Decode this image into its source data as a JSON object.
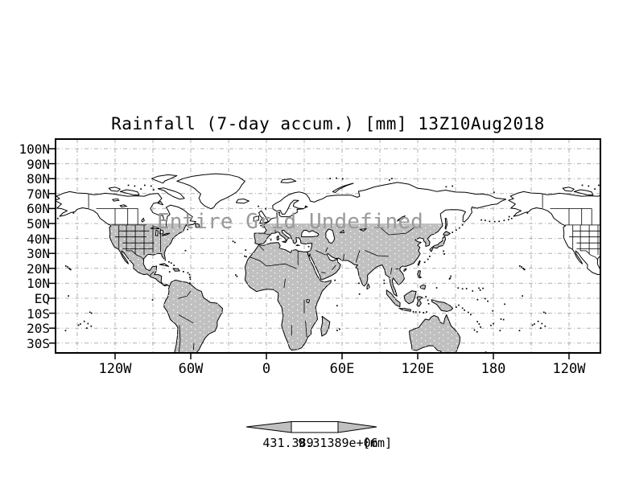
{
  "header": {
    "title": "Rainfall (7-day accum.) [mm] 13Z10Aug2018"
  },
  "map": {
    "annotation": "Entire Grid Undefined"
  },
  "axes": {
    "lat_labels": [
      "100N",
      "90N",
      "80N",
      "70N",
      "60N",
      "50N",
      "40N",
      "30N",
      "20N",
      "10N",
      "EQ",
      "10S",
      "20S",
      "30S"
    ],
    "lon_labels": [
      "120W",
      "60W",
      "0",
      "60E",
      "120E",
      "180",
      "120W"
    ]
  },
  "colorbar": {
    "left_tick": "431.389",
    "right_tick": "9.31389e+06",
    "unit": "[mm]"
  },
  "colors": {
    "background": "#ffffff",
    "land_shade": "#c0c0c0",
    "land_polar": "#ffffff",
    "coastline": "#000000",
    "gridline": "#b0b0b0",
    "annotation": "#9a9a9a",
    "frame": "#000000",
    "colorbar_arrow": "#c0c0c0",
    "colorbar_box": "#ffffff"
  },
  "chart_data": {
    "type": "heatmap",
    "title": "Rainfall (7-day accum.) [mm] 13Z10Aug2018",
    "variable": "Rainfall (7-day accum.)",
    "units": "mm",
    "valid_time": "13Z10Aug2018",
    "projection": "equirectangular lat-lon world map (GrADS style)",
    "lat_axis": {
      "tick_labels": [
        "100N",
        "90N",
        "80N",
        "70N",
        "60N",
        "50N",
        "40N",
        "30N",
        "20N",
        "10N",
        "EQ",
        "10S",
        "20S",
        "30S"
      ],
      "tick_values_deg": [
        100,
        90,
        80,
        70,
        60,
        50,
        40,
        30,
        20,
        10,
        0,
        -10,
        -20,
        -30
      ],
      "range_deg": [
        -36.6,
        106.5
      ]
    },
    "lon_axis": {
      "tick_labels": [
        "120W",
        "60W",
        "0",
        "60E",
        "120E",
        "180",
        "120W"
      ],
      "tick_values_deg": [
        -120,
        -60,
        0,
        60,
        120,
        180,
        240
      ],
      "range_deg": [
        -167.2,
        264.9
      ]
    },
    "grid": "dashed gray graticule every 10 deg latitude / 30 deg longitude",
    "annotation": "Entire Grid Undefined",
    "data_status": "no rainfall values plotted - entire grid undefined; land south of 50N shaded gray",
    "colorbar": {
      "tick_labels": [
        "431.389",
        "9.31389e+06"
      ],
      "unit": "[mm]"
    }
  }
}
